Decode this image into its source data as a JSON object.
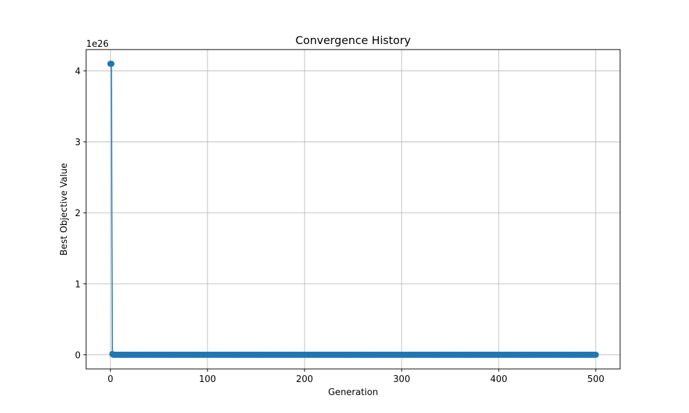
{
  "chart_data": {
    "type": "line",
    "title": "Convergence History",
    "xlabel": "Generation",
    "ylabel": "Best Objective Value",
    "y_offset_label": "1e26",
    "y_scale_exponent": 26,
    "xlim": [
      -25,
      525
    ],
    "ylim": [
      -0.2,
      4.3
    ],
    "x_ticks": [
      0,
      100,
      200,
      300,
      400,
      500
    ],
    "y_ticks": [
      0,
      1,
      2,
      3,
      4
    ],
    "grid": true,
    "marker": "circle",
    "series": [
      {
        "color": "#1f77b4",
        "x_start": 0,
        "x_end": 500,
        "x_step": 1,
        "values_scaled_by_1e26": {
          "0": 4.1,
          "1": 4.1,
          "2": 0.01,
          "3_to_500": 0.0
        }
      }
    ]
  }
}
